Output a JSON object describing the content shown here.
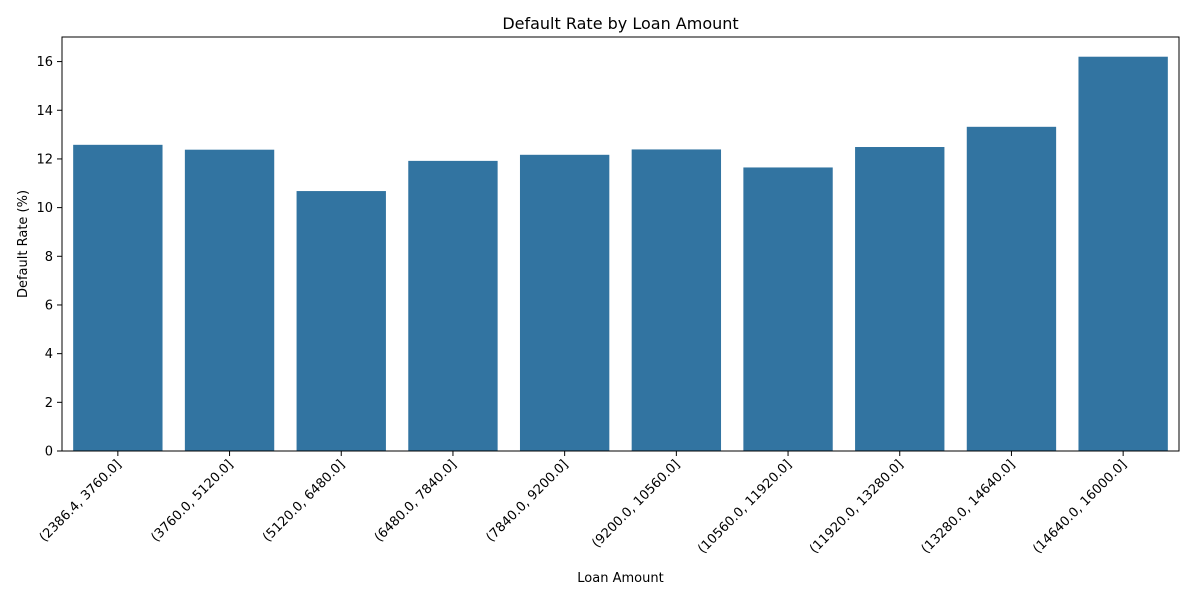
{
  "chart_data": {
    "type": "bar",
    "title": "Default Rate by Loan Amount",
    "xlabel": "Loan Amount",
    "ylabel": "Default Rate (%)",
    "categories": [
      "(2386.4, 3760.0]",
      "(3760.0, 5120.0]",
      "(5120.0, 6480.0]",
      "(6480.0, 7840.0]",
      "(7840.0, 9200.0]",
      "(9200.0, 10560.0]",
      "(10560.0, 11920.0]",
      "(11920.0, 13280.0]",
      "(13280.0, 14640.0]",
      "(14640.0, 16000.0]"
    ],
    "values": [
      12.58,
      12.38,
      10.68,
      11.92,
      12.17,
      12.39,
      11.65,
      12.49,
      13.32,
      16.2
    ],
    "ylim": [
      0,
      17.01
    ],
    "yticks": [
      0,
      2,
      4,
      6,
      8,
      10,
      12,
      14,
      16
    ],
    "bar_color": "#3274a1",
    "grid": false,
    "legend": "none"
  }
}
